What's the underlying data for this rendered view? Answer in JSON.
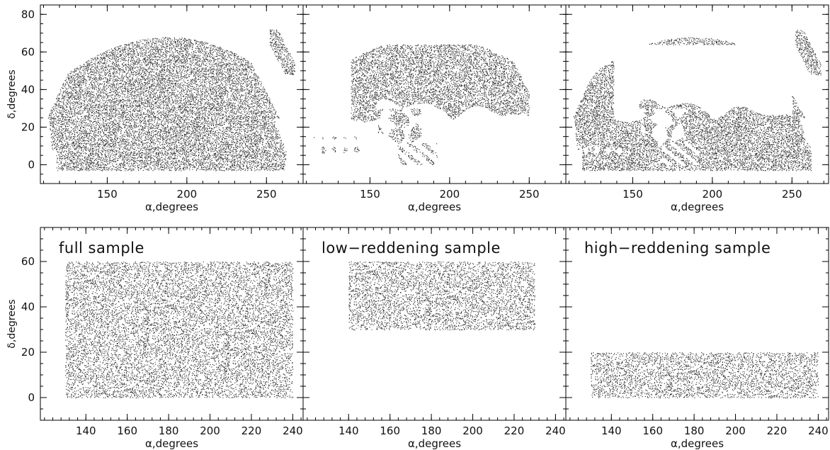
{
  "chart_data": [
    {
      "type": "scatter",
      "panel": "top-left",
      "title": "",
      "xlabel": "α,degrees",
      "ylabel": "δ,degrees",
      "xlim": [
        108,
        273
      ],
      "ylim": [
        -10,
        85
      ],
      "xticks": [
        150,
        200,
        250
      ],
      "yticks": [
        0,
        20,
        40,
        60,
        80
      ],
      "density": 0.55,
      "footprint": "sdss",
      "mask": "none",
      "point_color": "#222222"
    },
    {
      "type": "scatter",
      "panel": "top-middle",
      "title": "",
      "xlabel": "α,degrees",
      "ylabel": "",
      "xlim": [
        108,
        273
      ],
      "ylim": [
        -10,
        85
      ],
      "xticks": [
        150,
        200,
        250
      ],
      "yticks": [
        0,
        20,
        40,
        60,
        80
      ],
      "density": 0.5,
      "footprint": "sdss",
      "mask": "low",
      "point_color": "#222222"
    },
    {
      "type": "scatter",
      "panel": "top-right",
      "title": "",
      "xlabel": "α,degrees",
      "ylabel": "",
      "xlim": [
        108,
        273
      ],
      "ylim": [
        -10,
        85
      ],
      "xticks": [
        150,
        200,
        250
      ],
      "yticks": [
        0,
        20,
        40,
        60,
        80
      ],
      "density": 0.55,
      "footprint": "sdss",
      "mask": "high",
      "point_color": "#222222"
    },
    {
      "type": "scatter",
      "panel": "bottom-left",
      "title": "full sample",
      "xlabel": "α,degrees",
      "ylabel": "δ,degrees",
      "xlim": [
        118,
        245
      ],
      "ylim": [
        -10,
        75
      ],
      "xticks": [
        140,
        160,
        180,
        200,
        220,
        240
      ],
      "yticks": [
        0,
        20,
        40,
        60
      ],
      "density": 0.35,
      "region": {
        "ra": [
          130,
          240
        ],
        "dec": [
          0,
          60
        ]
      },
      "point_color": "#222222"
    },
    {
      "type": "scatter",
      "panel": "bottom-middle",
      "title": "low−reddening sample",
      "xlabel": "α,degrees",
      "ylabel": "",
      "xlim": [
        118,
        245
      ],
      "ylim": [
        -10,
        75
      ],
      "xticks": [
        140,
        160,
        180,
        200,
        220,
        240
      ],
      "yticks": [
        0,
        20,
        40,
        60
      ],
      "density": 0.35,
      "region": {
        "ra": [
          140,
          230
        ],
        "dec": [
          30,
          60
        ]
      },
      "point_color": "#222222"
    },
    {
      "type": "scatter",
      "panel": "bottom-right",
      "title": "high−reddening sample",
      "xlabel": "α,degrees",
      "ylabel": "",
      "xlim": [
        118,
        245
      ],
      "ylim": [
        -10,
        75
      ],
      "xticks": [
        140,
        160,
        180,
        200,
        220,
        240
      ],
      "yticks": [
        0,
        20,
        40,
        60
      ],
      "density": 0.35,
      "region": {
        "ra": [
          130,
          240
        ],
        "dec": [
          0,
          20
        ]
      },
      "point_color": "#222222"
    }
  ]
}
